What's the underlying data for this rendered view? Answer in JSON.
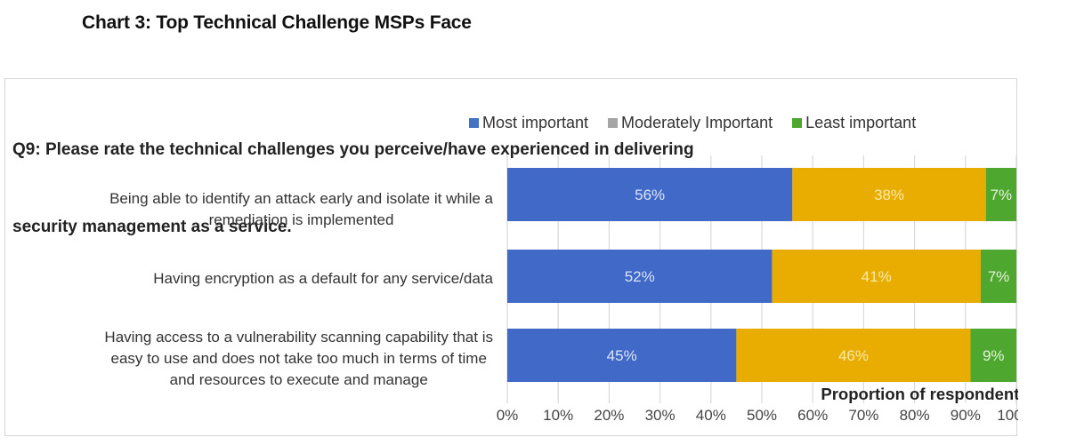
{
  "page_title": "Chart 3: Top Technical Challenge MSPs Face",
  "chart_data": {
    "type": "bar",
    "orientation": "horizontal",
    "stacked": true,
    "title": "Q9: Please rate the technical challenges you perceive/have experienced in delivering\nsecurity management as a service.",
    "title_lines": [
      "Q9: Please rate the technical challenges you perceive/have experienced in delivering",
      "security management as a service."
    ],
    "xlabel": "Proportion of respondents",
    "ylabel": "",
    "xlim": [
      0,
      100
    ],
    "x_ticks": [
      "0%",
      "10%",
      "20%",
      "30%",
      "40%",
      "50%",
      "60%",
      "70%",
      "80%",
      "90%",
      "100%"
    ],
    "grid": true,
    "legend_position": "top-right",
    "categories": [
      [
        "Being able to identify an attack early and isolate it while a",
        "remediation is implemented"
      ],
      [
        "Having encryption as a default for any service/data"
      ],
      [
        "Having access to a vulnerability scanning capability that is",
        "easy to use and does not take too much in terms of time",
        "and resources to execute and manage"
      ]
    ],
    "series": [
      {
        "name": "Most important",
        "legend_color": "#4472c4",
        "bar_color": "#4169c8",
        "label_color": "#dbe4f7",
        "values": [
          56,
          52,
          45
        ]
      },
      {
        "name": "Moderately Important",
        "legend_color": "#a5a5a5",
        "bar_color": "#e8ad00",
        "label_color": "#fbe9a8",
        "values": [
          38,
          41,
          46
        ]
      },
      {
        "name": "Least important",
        "legend_color": "#4ea72e",
        "bar_color": "#4ea72e",
        "label_color": "#e3f2dc",
        "values": [
          7,
          7,
          9
        ]
      }
    ],
    "data_label_suffix": "%"
  }
}
